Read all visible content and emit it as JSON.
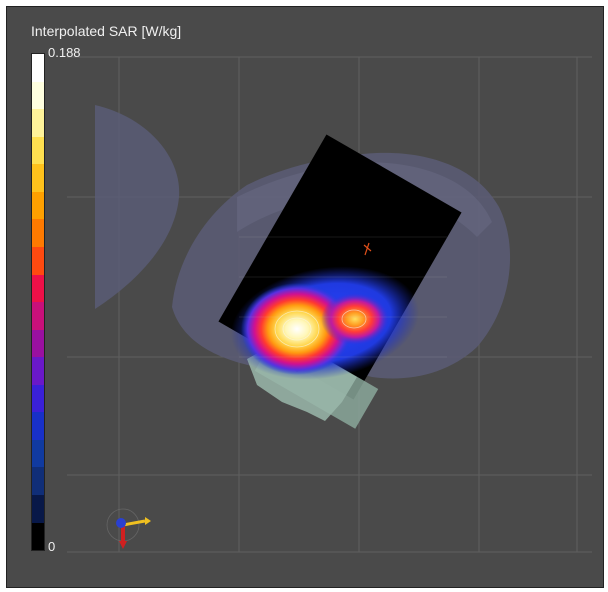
{
  "legend": {
    "title": "Interpolated SAR [W/kg]",
    "max_label": "0.188",
    "min_label": "0",
    "colors": [
      "#ffffff",
      "#ffffe0",
      "#fff39a",
      "#ffe050",
      "#ffc21c",
      "#ffa000",
      "#ff7a00",
      "#ff4a10",
      "#ee1048",
      "#c8107a",
      "#9a10a0",
      "#6a18c8",
      "#3a20d8",
      "#1830c8",
      "#103aa0",
      "#102e78",
      "#081848",
      "#000000"
    ]
  },
  "colors": {
    "viewport_bg": "#4a4a4a",
    "phantom": "#5c5e74",
    "grid": "#9a9a9a"
  },
  "icons": {
    "axes": "xyz-axes-orientation-icon"
  }
}
